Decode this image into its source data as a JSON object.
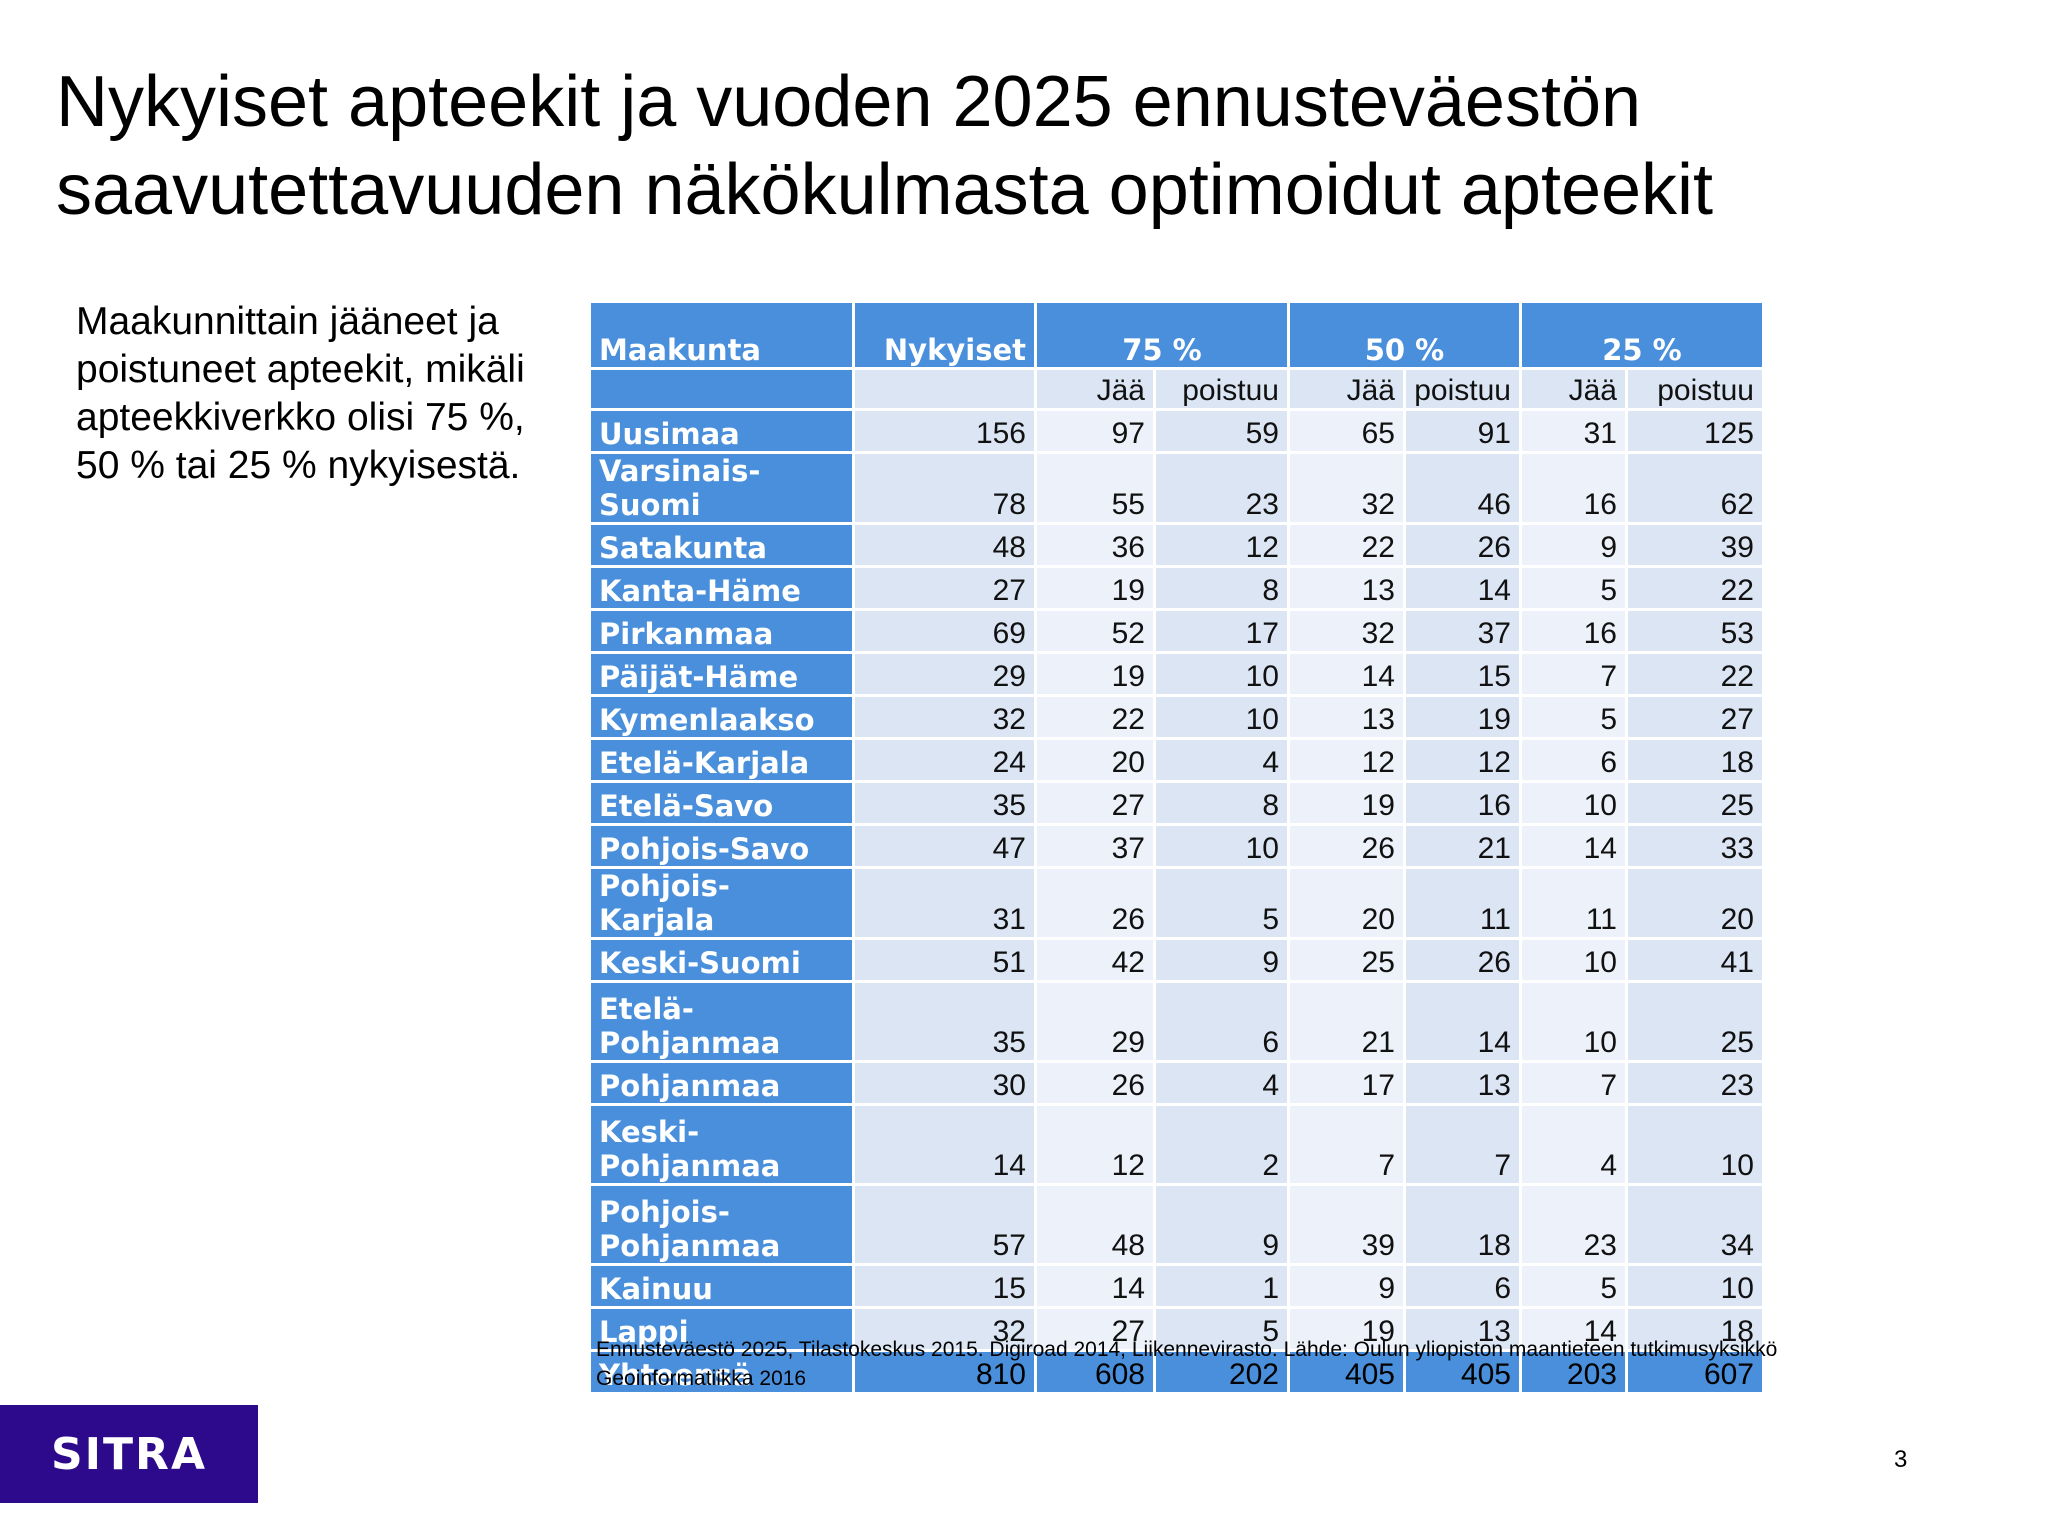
{
  "title": "Nykyiset apteekit ja vuoden 2025 ennusteväestön saavutettavuuden näkökulmasta optimoidut apteekit",
  "subtitle": "Maakunnittain jääneet ja poistuneet apteekit, mikäli apteekkiverkko olisi 75 %, 50 % tai 25 % nykyisestä.",
  "table": {
    "header": {
      "region": "Maakunta",
      "current": "Nykyiset",
      "p75": "75 %",
      "p50": "50 %",
      "p25": "25 %"
    },
    "subheader": {
      "p75_stay": "Jää",
      "p75_leave": "poistuu",
      "p50_stay": "Jää",
      "p50_leave": "poistuu",
      "p25_stay": "Jää",
      "p25_leave": "poistuu"
    },
    "rows": [
      {
        "region": "Uusimaa",
        "current": "156",
        "s75": "97",
        "l75": "59",
        "s50": "65",
        "l50": "91",
        "s25": "31",
        "l25": "125"
      },
      {
        "region": "Varsinais-Suomi",
        "current": "78",
        "s75": "55",
        "l75": "23",
        "s50": "32",
        "l50": "46",
        "s25": "16",
        "l25": "62"
      },
      {
        "region": "Satakunta",
        "current": "48",
        "s75": "36",
        "l75": "12",
        "s50": "22",
        "l50": "26",
        "s25": "9",
        "l25": "39"
      },
      {
        "region": "Kanta-Häme",
        "current": "27",
        "s75": "19",
        "l75": "8",
        "s50": "13",
        "l50": "14",
        "s25": "5",
        "l25": "22"
      },
      {
        "region": "Pirkanmaa",
        "current": "69",
        "s75": "52",
        "l75": "17",
        "s50": "32",
        "l50": "37",
        "s25": "16",
        "l25": "53"
      },
      {
        "region": "Päijät-Häme",
        "current": "29",
        "s75": "19",
        "l75": "10",
        "s50": "14",
        "l50": "15",
        "s25": "7",
        "l25": "22"
      },
      {
        "region": "Kymenlaakso",
        "current": "32",
        "s75": "22",
        "l75": "10",
        "s50": "13",
        "l50": "19",
        "s25": "5",
        "l25": "27"
      },
      {
        "region": "Etelä-Karjala",
        "current": "24",
        "s75": "20",
        "l75": "4",
        "s50": "12",
        "l50": "12",
        "s25": "6",
        "l25": "18"
      },
      {
        "region": "Etelä-Savo",
        "current": "35",
        "s75": "27",
        "l75": "8",
        "s50": "19",
        "l50": "16",
        "s25": "10",
        "l25": "25"
      },
      {
        "region": "Pohjois-Savo",
        "current": "47",
        "s75": "37",
        "l75": "10",
        "s50": "26",
        "l50": "21",
        "s25": "14",
        "l25": "33"
      },
      {
        "region": "Pohjois-Karjala",
        "current": "31",
        "s75": "26",
        "l75": "5",
        "s50": "20",
        "l50": "11",
        "s25": "11",
        "l25": "20"
      },
      {
        "region": "Keski-Suomi",
        "current": "51",
        "s75": "42",
        "l75": "9",
        "s50": "25",
        "l50": "26",
        "s25": "10",
        "l25": "41"
      },
      {
        "region": "Etelä-Pohjanmaa",
        "current": "35",
        "s75": "29",
        "l75": "6",
        "s50": "21",
        "l50": "14",
        "s25": "10",
        "l25": "25"
      },
      {
        "region": "Pohjanmaa",
        "current": "30",
        "s75": "26",
        "l75": "4",
        "s50": "17",
        "l50": "13",
        "s25": "7",
        "l25": "23"
      },
      {
        "region": "Keski-Pohjanmaa",
        "current": "14",
        "s75": "12",
        "l75": "2",
        "s50": "7",
        "l50": "7",
        "s25": "4",
        "l25": "10"
      },
      {
        "region": "Pohjois-Pohjanmaa",
        "current": "57",
        "s75": "48",
        "l75": "9",
        "s50": "39",
        "l50": "18",
        "s25": "23",
        "l25": "34"
      },
      {
        "region": "Kainuu",
        "current": "15",
        "s75": "14",
        "l75": "1",
        "s50": "9",
        "l50": "6",
        "s25": "5",
        "l25": "10"
      },
      {
        "region": "Lappi",
        "current": "32",
        "s75": "27",
        "l75": "5",
        "s50": "19",
        "l50": "13",
        "s25": "14",
        "l25": "18"
      }
    ],
    "total": {
      "region": "Yhteensä",
      "current": "810",
      "s75": "608",
      "l75": "202",
      "s50": "405",
      "l50": "405",
      "s25": "203",
      "l25": "607"
    }
  },
  "source_note": "Ennusteväestö 2025, Tilastokeskus 2015. Digiroad 2014, Liikennevirasto. Lähde: Oulun yliopiston maantieteen tutkimusyksikkö Geoinformatiikka 2016",
  "logo_text": "SITRA",
  "page_number": "3",
  "colors": {
    "header_blue": "#4a8fdb",
    "cell_light": "#dce5f4",
    "cell_lighter": "#edf1f9",
    "logo_bg": "#2d0a8c"
  }
}
